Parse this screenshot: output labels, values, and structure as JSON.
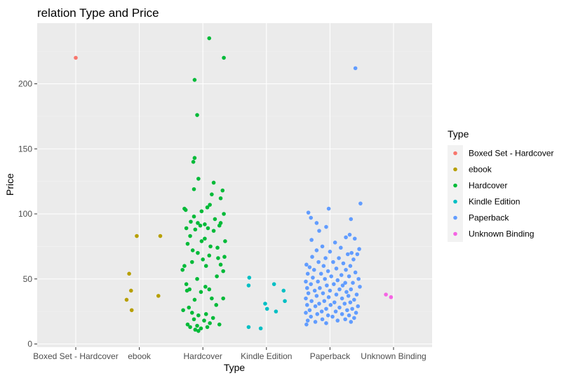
{
  "chart_data": {
    "type": "scatter",
    "title": "relation Type and Price",
    "xlabel": "Type",
    "ylabel": "Price",
    "categories": [
      "Boxed Set - Hardcover",
      "ebook",
      "Hardcover",
      "Kindle Edition",
      "Paperback",
      "Unknown Binding"
    ],
    "yticks": [
      0,
      50,
      100,
      150,
      200
    ],
    "ylim": [
      -2,
      247
    ],
    "grid": true,
    "legend_position": "right",
    "legend_title": "Type",
    "background": "#EBEBEB",
    "colors": {
      "Boxed Set - Hardcover": "#F8766D",
      "ebook": "#B79F00",
      "Hardcover": "#00BA38",
      "Kindle Edition": "#00BFC4",
      "Paperback": "#619CFF",
      "Unknown Binding": "#F564E3"
    },
    "series": [
      {
        "name": "Boxed Set - Hardcover",
        "points": [
          [
            0.0,
            220
          ]
        ]
      },
      {
        "name": "ebook",
        "points": [
          [
            0.96,
            83
          ],
          [
            1.33,
            83
          ],
          [
            0.84,
            54
          ],
          [
            0.87,
            41
          ],
          [
            1.3,
            37
          ],
          [
            0.8,
            34
          ],
          [
            0.88,
            26
          ]
        ]
      },
      {
        "name": "Hardcover",
        "points": [
          [
            2.1,
            235
          ],
          [
            2.33,
            220
          ],
          [
            1.87,
            203
          ],
          [
            1.91,
            176
          ],
          [
            1.87,
            143
          ],
          [
            1.85,
            140
          ],
          [
            1.93,
            127
          ],
          [
            2.17,
            124
          ],
          [
            1.86,
            119
          ],
          [
            2.31,
            118
          ],
          [
            2.14,
            115
          ],
          [
            2.28,
            112
          ],
          [
            2.11,
            107
          ],
          [
            2.07,
            105
          ],
          [
            1.71,
            104
          ],
          [
            1.73,
            103
          ],
          [
            1.98,
            102
          ],
          [
            2.33,
            100
          ],
          [
            1.86,
            98
          ],
          [
            2.19,
            96
          ],
          [
            1.81,
            94
          ],
          [
            1.92,
            93
          ],
          [
            2.28,
            93
          ],
          [
            2.03,
            92
          ],
          [
            2.26,
            91
          ],
          [
            1.96,
            91
          ],
          [
            1.74,
            89
          ],
          [
            2.08,
            89
          ],
          [
            1.88,
            88
          ],
          [
            2.17,
            87
          ],
          [
            1.8,
            83
          ],
          [
            2.03,
            81
          ],
          [
            2.35,
            79
          ],
          [
            1.98,
            79
          ],
          [
            1.76,
            77
          ],
          [
            2.12,
            75
          ],
          [
            2.23,
            74
          ],
          [
            1.84,
            72
          ],
          [
            1.92,
            70
          ],
          [
            2.1,
            68
          ],
          [
            2.34,
            67
          ],
          [
            2.24,
            66
          ],
          [
            2.0,
            65
          ],
          [
            1.83,
            63
          ],
          [
            2.28,
            61
          ],
          [
            2.05,
            60
          ],
          [
            1.71,
            60
          ],
          [
            1.68,
            57
          ],
          [
            2.32,
            56
          ],
          [
            2.22,
            52
          ],
          [
            1.91,
            50
          ],
          [
            1.74,
            46
          ],
          [
            2.04,
            44
          ],
          [
            1.79,
            42
          ],
          [
            2.1,
            42
          ],
          [
            1.75,
            41
          ],
          [
            1.97,
            40
          ],
          [
            2.14,
            35
          ],
          [
            2.32,
            35
          ],
          [
            1.87,
            34
          ],
          [
            2.21,
            30
          ],
          [
            1.78,
            28
          ],
          [
            1.69,
            26
          ],
          [
            1.83,
            24
          ],
          [
            2.05,
            23
          ],
          [
            1.93,
            22
          ],
          [
            2.16,
            20
          ],
          [
            1.86,
            19
          ],
          [
            2.02,
            18
          ],
          [
            2.11,
            16
          ],
          [
            1.76,
            15
          ],
          [
            2.26,
            15
          ],
          [
            1.91,
            14
          ],
          [
            1.8,
            13
          ],
          [
            2.07,
            13
          ],
          [
            1.97,
            12
          ],
          [
            1.88,
            11
          ],
          [
            1.93,
            10
          ]
        ]
      },
      {
        "name": "Kindle Edition",
        "points": [
          [
            2.73,
            51
          ],
          [
            2.72,
            45
          ],
          [
            3.12,
            46
          ],
          [
            3.27,
            41
          ],
          [
            3.29,
            33
          ],
          [
            2.98,
            31
          ],
          [
            3.01,
            27
          ],
          [
            3.15,
            25
          ],
          [
            2.72,
            13
          ],
          [
            2.91,
            12
          ]
        ]
      },
      {
        "name": "Paperback",
        "points": [
          [
            4.4,
            212
          ],
          [
            3.66,
            101
          ],
          [
            3.98,
            104
          ],
          [
            4.48,
            108
          ],
          [
            3.7,
            97
          ],
          [
            4.33,
            96
          ],
          [
            3.79,
            93
          ],
          [
            3.94,
            90
          ],
          [
            3.83,
            87
          ],
          [
            4.31,
            84
          ],
          [
            4.25,
            82
          ],
          [
            4.39,
            81
          ],
          [
            3.71,
            80
          ],
          [
            4.08,
            78
          ],
          [
            3.88,
            75
          ],
          [
            4.17,
            74
          ],
          [
            4.46,
            73
          ],
          [
            3.79,
            72
          ],
          [
            4.0,
            71
          ],
          [
            4.28,
            69
          ],
          [
            4.34,
            70
          ],
          [
            4.43,
            69
          ],
          [
            3.72,
            67
          ],
          [
            3.93,
            66
          ],
          [
            4.14,
            66
          ],
          [
            4.37,
            65
          ],
          [
            3.82,
            63
          ],
          [
            4.05,
            63
          ],
          [
            4.21,
            62
          ],
          [
            3.63,
            61
          ],
          [
            3.9,
            60
          ],
          [
            4.32,
            60
          ],
          [
            3.68,
            59
          ],
          [
            4.1,
            58
          ],
          [
            3.75,
            57
          ],
          [
            4.25,
            57
          ],
          [
            3.97,
            56
          ],
          [
            4.4,
            55
          ],
          [
            3.65,
            54
          ],
          [
            3.86,
            54
          ],
          [
            4.18,
            53
          ],
          [
            4.02,
            52
          ],
          [
            4.3,
            52
          ],
          [
            3.73,
            51
          ],
          [
            4.45,
            50
          ],
          [
            3.92,
            50
          ],
          [
            4.12,
            49
          ],
          [
            3.62,
            48
          ],
          [
            3.81,
            48
          ],
          [
            4.24,
            47
          ],
          [
            4.36,
            47
          ],
          [
            3.7,
            46
          ],
          [
            4.06,
            46
          ],
          [
            3.95,
            45
          ],
          [
            4.2,
            45
          ],
          [
            4.47,
            44
          ],
          [
            3.64,
            43
          ],
          [
            3.84,
            43
          ],
          [
            4.15,
            42
          ],
          [
            4.33,
            42
          ],
          [
            3.76,
            41
          ],
          [
            4.0,
            41
          ],
          [
            4.26,
            40
          ],
          [
            3.66,
            39
          ],
          [
            3.89,
            39
          ],
          [
            4.42,
            38
          ],
          [
            4.1,
            38
          ],
          [
            3.79,
            37
          ],
          [
            4.29,
            37
          ],
          [
            3.98,
            36
          ],
          [
            3.62,
            35
          ],
          [
            4.19,
            35
          ],
          [
            4.38,
            34
          ],
          [
            3.71,
            33
          ],
          [
            3.91,
            33
          ],
          [
            4.07,
            32
          ],
          [
            4.32,
            32
          ],
          [
            3.83,
            31
          ],
          [
            4.23,
            31
          ],
          [
            3.64,
            30
          ],
          [
            4.01,
            30
          ],
          [
            4.44,
            29
          ],
          [
            3.77,
            29
          ],
          [
            4.15,
            28
          ],
          [
            3.94,
            27
          ],
          [
            4.35,
            27
          ],
          [
            3.68,
            26
          ],
          [
            4.27,
            26
          ],
          [
            3.87,
            25
          ],
          [
            4.09,
            25
          ],
          [
            3.62,
            24
          ],
          [
            4.41,
            24
          ],
          [
            4.19,
            23
          ],
          [
            3.8,
            23
          ],
          [
            3.97,
            22
          ],
          [
            4.3,
            22
          ],
          [
            3.7,
            21
          ],
          [
            4.04,
            21
          ],
          [
            4.38,
            20
          ],
          [
            3.88,
            19
          ],
          [
            4.24,
            19
          ],
          [
            3.65,
            18
          ],
          [
            4.12,
            18
          ],
          [
            3.77,
            17
          ],
          [
            4.33,
            17
          ],
          [
            3.94,
            16
          ],
          [
            3.63,
            15
          ]
        ]
      },
      {
        "name": "Unknown Binding",
        "points": [
          [
            4.88,
            38
          ],
          [
            4.96,
            36
          ]
        ]
      }
    ]
  }
}
